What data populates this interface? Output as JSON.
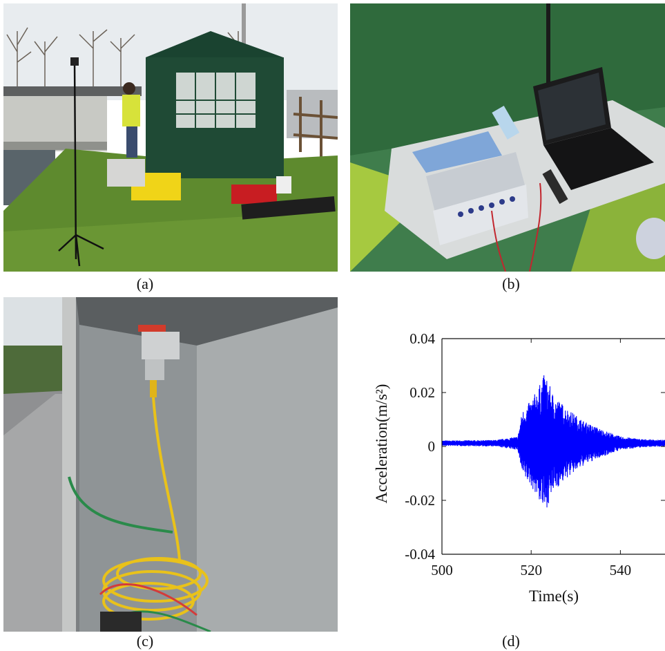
{
  "captions": {
    "a": "(a)",
    "b": "(b)",
    "c": "(c)",
    "d": "(d)"
  },
  "panel_a": {
    "sky": "#e8ecef",
    "grass": "#5e8a2e",
    "tent": "#1f4a35",
    "wall": "#c8c9c4"
  },
  "panel_b": {
    "tent_fabric": "#3f7d4c",
    "table": "#d9dcdc",
    "laptop": "#1b1b1c"
  },
  "panel_c": {
    "wall": "#8f9496",
    "cable_yellow": "#e9c21a",
    "cable_green": "#2a8a4a"
  },
  "chart_data": {
    "type": "line",
    "xlabel": "Time(s)",
    "ylabel": "Acceleration(m/s²)",
    "xlim": [
      500,
      550
    ],
    "ylim": [
      -0.04,
      0.04
    ],
    "xticks": [
      "500",
      "520",
      "540"
    ],
    "yticks": [
      "0.04",
      "0.02",
      "0",
      "-0.02",
      "-0.04"
    ],
    "line_color": "#0000ff",
    "series": [
      {
        "envelope": {
          "t": [
            500,
            512,
            517,
            518,
            520,
            522,
            523,
            525,
            528,
            532,
            536,
            540,
            545,
            550
          ],
          "amp": [
            0.001,
            0.0012,
            0.0025,
            0.012,
            0.016,
            0.022,
            0.026,
            0.018,
            0.013,
            0.008,
            0.005,
            0.0025,
            0.0015,
            0.0012
          ]
        }
      }
    ]
  }
}
